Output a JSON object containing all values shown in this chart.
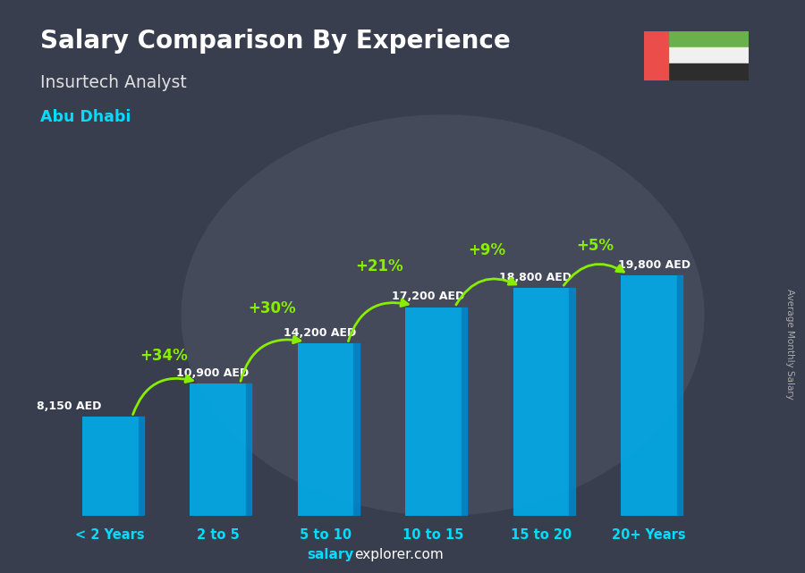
{
  "title": "Salary Comparison By Experience",
  "subtitle": "Insurtech Analyst",
  "city": "Abu Dhabi",
  "ylabel": "Average Monthly Salary",
  "footer_bold": "salary",
  "footer_rest": "explorer.com",
  "categories": [
    "< 2 Years",
    "2 to 5",
    "5 to 10",
    "10 to 15",
    "15 to 20",
    "20+ Years"
  ],
  "values": [
    8150,
    10900,
    14200,
    17200,
    18800,
    19800
  ],
  "value_labels": [
    "8,150 AED",
    "10,900 AED",
    "14,200 AED",
    "17,200 AED",
    "18,800 AED",
    "19,800 AED"
  ],
  "pct_labels": [
    "+34%",
    "+30%",
    "+21%",
    "+9%",
    "+5%"
  ],
  "bg_color": "#2a3040",
  "photo_color": "#4a5060",
  "title_color": "#ffffff",
  "subtitle_color": "#e0e0e0",
  "city_color": "#00DDFF",
  "value_label_color": "#ffffff",
  "pct_color": "#88EE00",
  "arrow_color": "#88EE00",
  "tick_label_color": "#00DDFF",
  "ylabel_color": "#aaaaaa",
  "footer_cyan": "#00DDFF",
  "footer_white": "#ffffff",
  "bar_front": "#00AEEF",
  "bar_side": "#0088CC",
  "bar_top": "#44CCFF",
  "bar_alpha": 0.88,
  "ylim": [
    0,
    26000
  ],
  "flag_green": "#6ab04c",
  "flag_red": "#eb4d4b",
  "flag_white": "#f0f0f0",
  "flag_black": "#2d2d2d"
}
